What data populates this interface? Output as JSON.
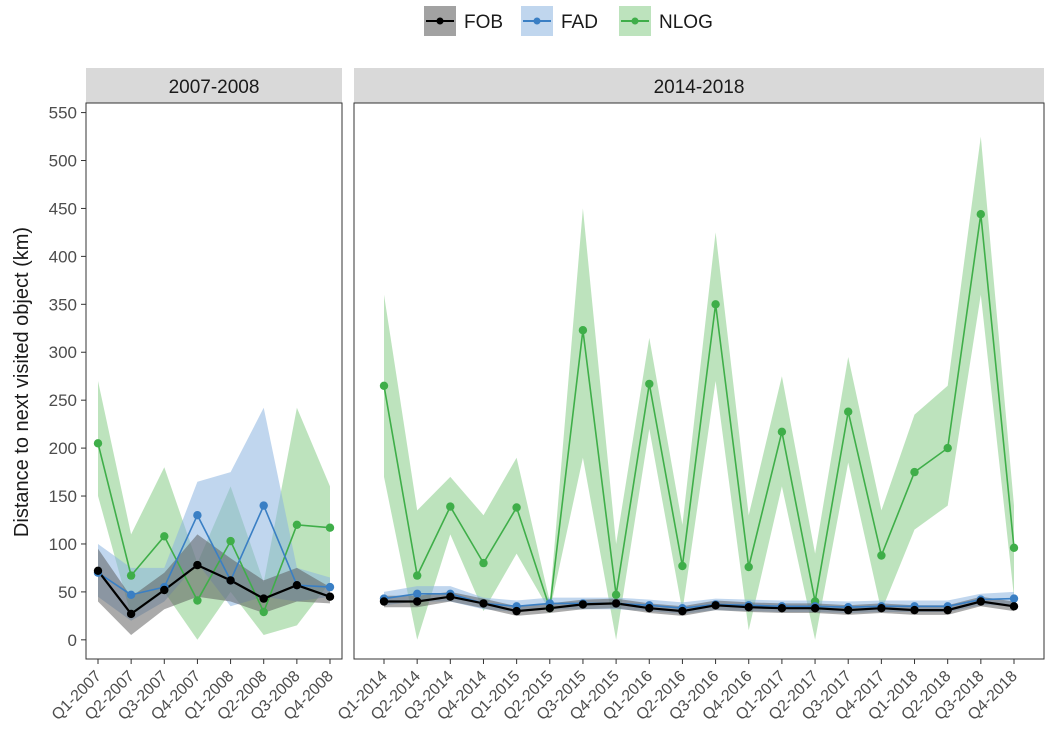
{
  "chart_data": {
    "type": "line",
    "ylabel": "Distance to next visited object (km)",
    "yticks": [
      0,
      50,
      100,
      150,
      200,
      250,
      300,
      350,
      400,
      450,
      500,
      550
    ],
    "ylim": [
      -20,
      560
    ],
    "legend": {
      "placement": "top-center",
      "entries": [
        "FOB",
        "FAD",
        "NLOG"
      ]
    },
    "colors": {
      "FOB": "#000000",
      "FAD": "#3a7fc4",
      "NLOG": "#3fae49"
    },
    "band_colors": {
      "FOB": "#555555",
      "FAD": "#8cb4e0",
      "NLOG": "#86cc86"
    },
    "panels": [
      {
        "title": "2007-2008",
        "categories": [
          "Q1-2007",
          "Q2-2007",
          "Q3-2007",
          "Q4-2007",
          "Q1-2008",
          "Q2-2008",
          "Q3-2008",
          "Q4-2008"
        ],
        "series": [
          {
            "name": "FOB",
            "values": [
              72,
              27,
              52,
              78,
              62,
              43,
              57,
              45
            ],
            "lower": [
              40,
              5,
              32,
              45,
              40,
              28,
              40,
              38
            ],
            "upper": [
              95,
              45,
              70,
              110,
              85,
              62,
              75,
              55
            ]
          },
          {
            "name": "FAD",
            "values": [
              70,
              47,
              55,
              130,
              62,
              140,
              57,
              55
            ],
            "lower": [
              45,
              20,
              40,
              80,
              35,
              45,
              40,
              45
            ],
            "upper": [
              100,
              75,
              75,
              165,
              175,
              242,
              75,
              65
            ]
          },
          {
            "name": "NLOG",
            "values": [
              205,
              67,
              108,
              41,
              103,
              29,
              120,
              117
            ],
            "lower": [
              150,
              25,
              50,
              0,
              50,
              5,
              15,
              60
            ],
            "upper": [
              270,
              110,
              180,
              80,
              160,
              60,
              242,
              160
            ]
          }
        ]
      },
      {
        "title": "2014-2018",
        "categories": [
          "Q1-2014",
          "Q2-2014",
          "Q3-2014",
          "Q4-2014",
          "Q1-2015",
          "Q2-2015",
          "Q3-2015",
          "Q4-2015",
          "Q1-2016",
          "Q2-2016",
          "Q3-2016",
          "Q4-2016",
          "Q1-2017",
          "Q2-2017",
          "Q3-2017",
          "Q4-2017",
          "Q1-2018",
          "Q2-2018",
          "Q3-2018",
          "Q4-2018"
        ],
        "series": [
          {
            "name": "FOB",
            "values": [
              40,
              40,
              45,
              38,
              30,
              33,
              37,
              38,
              33,
              30,
              36,
              34,
              33,
              33,
              31,
              33,
              31,
              31,
              40,
              35
            ],
            "lower": [
              34,
              34,
              40,
              33,
              25,
              28,
              32,
              33,
              28,
              25,
              31,
              29,
              28,
              28,
              26,
              28,
              26,
              26,
              35,
              30
            ],
            "upper": [
              46,
              46,
              50,
              43,
              35,
              38,
              42,
              43,
              38,
              35,
              41,
              39,
              38,
              38,
              36,
              38,
              36,
              36,
              45,
              40
            ]
          },
          {
            "name": "FAD",
            "values": [
              43,
              48,
              48,
              38,
              35,
              38,
              38,
              38,
              36,
              33,
              37,
              36,
              35,
              35,
              34,
              35,
              35,
              35,
              42,
              43
            ],
            "lower": [
              36,
              40,
              40,
              32,
              29,
              32,
              32,
              32,
              30,
              27,
              31,
              30,
              29,
              29,
              28,
              29,
              29,
              29,
              36,
              36
            ],
            "upper": [
              50,
              56,
              56,
              44,
              41,
              44,
              44,
              44,
              42,
              39,
              43,
              42,
              41,
              41,
              40,
              41,
              41,
              41,
              48,
              50
            ]
          },
          {
            "name": "NLOG",
            "values": [
              265,
              67,
              139,
              80,
              138,
              33,
              323,
              47,
              267,
              77,
              350,
              76,
              217,
              40,
              238,
              88,
              175,
              200,
              444,
              96
            ],
            "lower": [
              170,
              0,
              110,
              30,
              90,
              30,
              190,
              0,
              220,
              30,
              270,
              10,
              160,
              0,
              185,
              30,
              115,
              140,
              360,
              45
            ],
            "upper": [
              360,
              135,
              170,
              130,
              190,
              40,
              450,
              100,
              315,
              120,
              425,
              130,
              275,
              90,
              295,
              135,
              235,
              265,
              525,
              140
            ]
          }
        ]
      }
    ]
  }
}
